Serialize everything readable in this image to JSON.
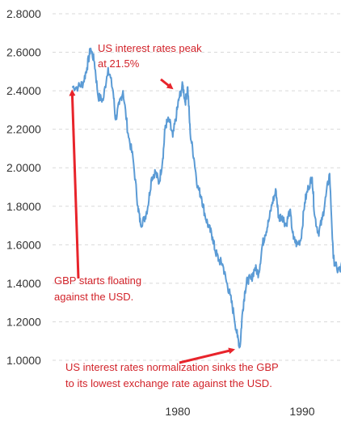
{
  "chart_data": {
    "type": "line",
    "title": "",
    "xlabel": "",
    "ylabel": "",
    "xlim": [
      1971.4,
      1993.7
    ],
    "ylim": [
      0.95,
      2.82
    ],
    "y_ticks": [
      "1.0000",
      "1.2000",
      "1.4000",
      "1.6000",
      "1.8000",
      "2.0000",
      "2.2000",
      "2.4000",
      "2.6000",
      "2.8000"
    ],
    "x_ticks": [
      "1980",
      "1990"
    ],
    "grid": "horizontal dashed",
    "line_color": "#5b9bd5",
    "series": [
      {
        "x": [
          1971.5,
          1972.0,
          1972.4,
          1972.7,
          1973.0,
          1973.3,
          1973.6,
          1974.0,
          1974.4,
          1974.8,
          1975.0,
          1975.3,
          1975.6,
          1976.0,
          1976.4,
          1976.8,
          1977.0,
          1977.3,
          1977.6,
          1977.9,
          1978.2,
          1978.5,
          1978.8,
          1979.0,
          1979.3,
          1979.6,
          1979.9,
          1980.1,
          1980.4,
          1980.6,
          1980.8,
          1981.0,
          1981.3,
          1981.6,
          1981.9,
          1982.2,
          1982.5,
          1982.8,
          1983.0,
          1983.3,
          1983.6,
          1983.9,
          1984.2,
          1984.5,
          1984.8,
          1985.0,
          1985.2,
          1985.4,
          1985.6,
          1985.9,
          1986.2,
          1986.5,
          1986.8,
          1987.0,
          1987.3,
          1987.6,
          1987.9,
          1988.1,
          1988.4,
          1988.7,
          1989.0,
          1989.3,
          1989.6,
          1989.9,
          1990.2,
          1990.5,
          1990.8,
          1991.0,
          1991.3,
          1991.6,
          1991.9,
          1992.2,
          1992.5,
          1992.8,
          1993.1,
          1993.4,
          1993.6
        ],
        "values": [
          2.42,
          2.42,
          2.44,
          2.52,
          2.62,
          2.55,
          2.37,
          2.35,
          2.52,
          2.4,
          2.25,
          2.33,
          2.4,
          2.18,
          2.05,
          1.8,
          1.71,
          1.73,
          1.8,
          1.95,
          1.98,
          1.92,
          2.05,
          2.22,
          2.25,
          2.16,
          2.28,
          2.36,
          2.43,
          2.34,
          2.42,
          2.18,
          2.05,
          1.9,
          1.85,
          1.75,
          1.69,
          1.64,
          1.57,
          1.52,
          1.5,
          1.41,
          1.34,
          1.24,
          1.12,
          1.07,
          1.25,
          1.36,
          1.42,
          1.42,
          1.48,
          1.45,
          1.6,
          1.65,
          1.72,
          1.82,
          1.88,
          1.74,
          1.75,
          1.7,
          1.78,
          1.63,
          1.6,
          1.63,
          1.82,
          1.9,
          1.95,
          1.75,
          1.66,
          1.73,
          1.85,
          1.97,
          1.53,
          1.47,
          1.47,
          1.58,
          1.56
        ]
      }
    ],
    "annotations": [
      {
        "lines": [
          "US interest rates peak",
          "at 21.5%"
        ],
        "target": {
          "x": 1979.8,
          "y": 2.4
        }
      },
      {
        "lines": [
          "GBP starts floating",
          "against the USD."
        ],
        "target": {
          "x": 1971.5,
          "y": 2.42
        }
      },
      {
        "lines": [
          "US interest rates normalization sinks the GBP",
          "to its lowest exchange rate against the USD."
        ],
        "target": {
          "x": 1984.8,
          "y": 1.06
        }
      }
    ]
  }
}
